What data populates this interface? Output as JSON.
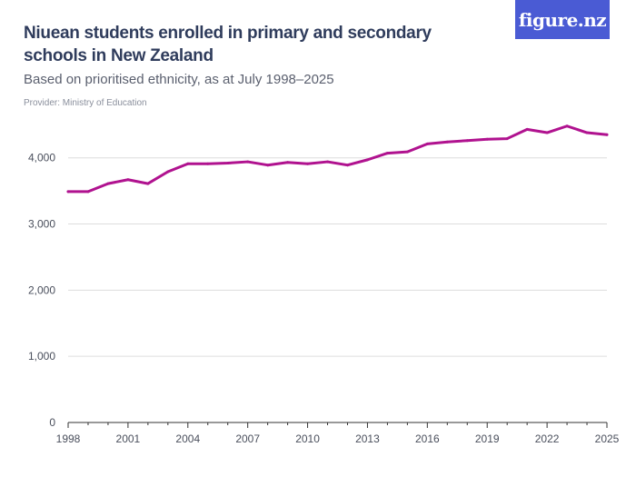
{
  "header": {
    "title": "Niuean students enrolled in primary and secondary schools in New Zealand",
    "subtitle": "Based on prioritised ethnicity, as at July 1998–2025",
    "provider": "Provider: Ministry of Education",
    "logo_text": "figure.nz"
  },
  "colors": {
    "line": "#b0128f",
    "grid": "#dddddd",
    "axis": "#333333",
    "logo_bg": "#4a5bd4"
  },
  "chart_data": {
    "type": "line",
    "title": "Niuean students enrolled in primary and secondary schools in New Zealand",
    "subtitle": "Based on prioritised ethnicity, as at July 1998–2025",
    "xlabel": "",
    "ylabel": "",
    "x": [
      1998,
      1999,
      2000,
      2001,
      2002,
      2003,
      2004,
      2005,
      2006,
      2007,
      2008,
      2009,
      2010,
      2011,
      2012,
      2013,
      2014,
      2015,
      2016,
      2017,
      2018,
      2019,
      2020,
      2021,
      2022,
      2023,
      2024,
      2025
    ],
    "series": [
      {
        "values": [
          3490,
          3490,
          3610,
          3670,
          3610,
          3790,
          3910,
          3910,
          3920,
          3940,
          3890,
          3930,
          3910,
          3940,
          3890,
          3970,
          4070,
          4090,
          4210,
          4240,
          4260,
          4280,
          4290,
          4430,
          4380,
          4480,
          4380,
          4350
        ]
      }
    ],
    "ylim": [
      0,
      4600
    ],
    "yticks": [
      0,
      1000,
      2000,
      3000,
      4000
    ],
    "ytick_labels": [
      "0",
      "1,000",
      "2,000",
      "3,000",
      "4,000"
    ],
    "xticks": [
      1998,
      2001,
      2004,
      2007,
      2010,
      2013,
      2016,
      2019,
      2022,
      2025
    ],
    "xtick_labels": [
      "1998",
      "2001",
      "2004",
      "2007",
      "2010",
      "2013",
      "2016",
      "2019",
      "2022",
      "2025"
    ],
    "grid": true,
    "legend": "none"
  }
}
